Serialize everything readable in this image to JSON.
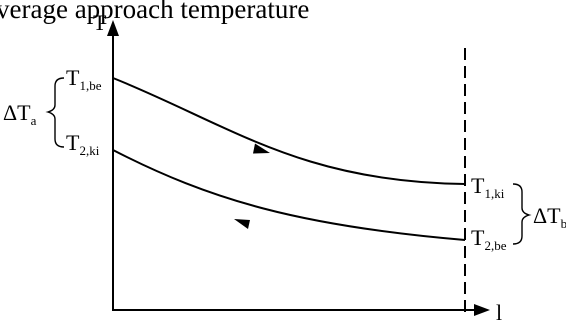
{
  "caption": "verage approach temperature",
  "axes": {
    "y_label": "T",
    "x_label": "l"
  },
  "labels": {
    "t1_be": {
      "main": "T",
      "sub": "1,be"
    },
    "t2_ki": {
      "main": "T",
      "sub": "2,ki"
    },
    "t1_ki": {
      "main": "T",
      "sub": "1,ki"
    },
    "t2_be": {
      "main": "T",
      "sub": "2,be"
    },
    "delta_a": {
      "main": "ΔT",
      "sub": "a"
    },
    "delta_b": {
      "main": "ΔT",
      "sub": "b"
    }
  }
}
